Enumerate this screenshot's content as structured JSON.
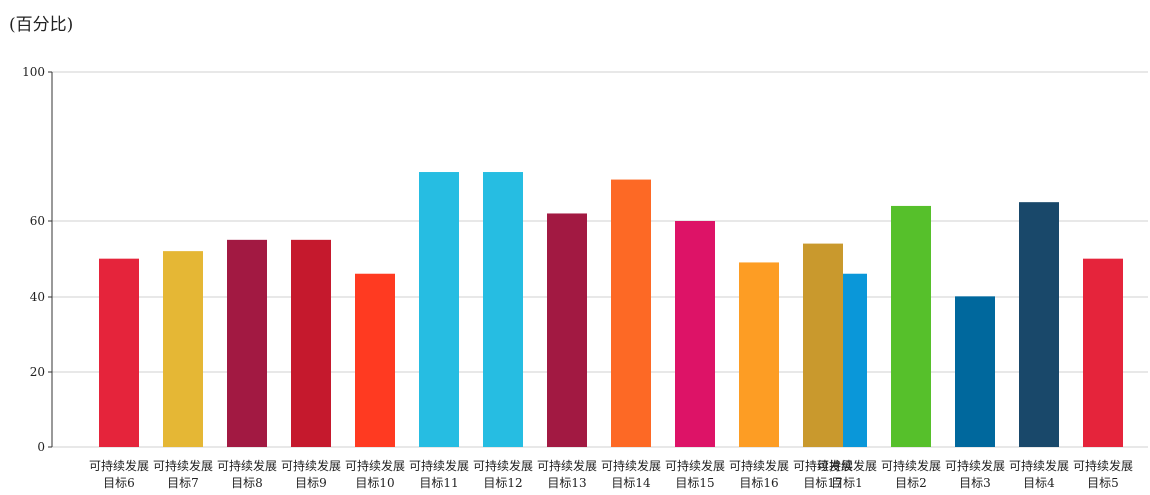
{
  "unit_label": "(百分比)",
  "chart_data": [
    {
      "type": "bar",
      "title": "",
      "ylim": [
        0,
        100
      ],
      "y_ticks": [
        0,
        20,
        40,
        60,
        100
      ],
      "y_tick_labels": [
        "0",
        "20",
        "40",
        "60",
        "100"
      ],
      "grid": true,
      "categories": [
        "可持续发展目标1",
        "可持续发展目标2",
        "可持续发展目标3",
        "可持续发展目标4",
        "可持续发展目标5",
        "可持续发展目标6",
        "可持续发展目标7",
        "可持续发展目标8",
        "可持续发展目标9",
        "可持续发展目标10",
        "可持续发展目标11",
        "可持续发展目标12",
        "可持续发展目标13",
        "可持续发展目标14",
        "可持续发展目标15",
        "可持续发展目标16",
        "可持续发展目标17"
      ],
      "values": [
        46,
        64,
        40,
        65,
        50,
        50,
        52,
        55,
        55,
        46,
        73,
        73,
        62,
        71,
        60,
        49,
        54
      ],
      "colors": [
        "#0a97d9",
        "#56c02b",
        "#00689d",
        "#19486a",
        "#e5243b",
        "#e5243b",
        "#e5b735",
        "#a21942",
        "#c5192d",
        "#ff3a21",
        "#26bde2",
        "#26bde2",
        "#a21942",
        "#fd6925",
        "#dd1367",
        "#fd9d24",
        "#c9992d"
      ]
    }
  ]
}
